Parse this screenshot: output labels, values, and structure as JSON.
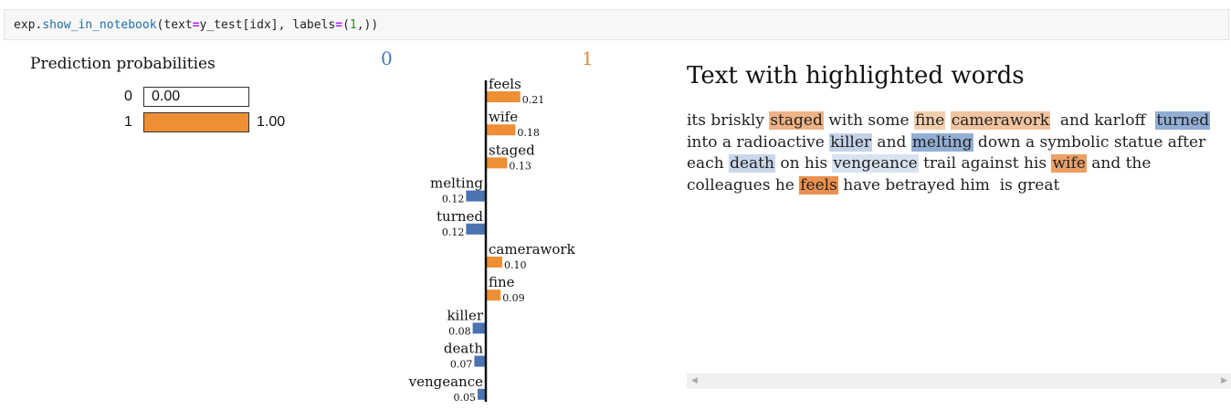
{
  "code_cell": {
    "object": "exp",
    "method": "show_in_notebook",
    "arg1_name": "text",
    "arg1_value": "y_test[idx]",
    "arg2_name": "labels",
    "arg2_value_open": "(",
    "arg2_value_num": "1",
    "arg2_value_close": ",)"
  },
  "prediction_probabilities": {
    "title": "Prediction probabilities",
    "rows": [
      {
        "label": "0",
        "value_text": "0.00",
        "fraction": 0.0
      },
      {
        "label": "1",
        "value_text": "1.00",
        "fraction": 1.0
      }
    ],
    "bar_color": "#ee8f35"
  },
  "class_headers": {
    "negative": "0",
    "positive": "1",
    "negative_color": "#4a7ab5",
    "positive_color": "#dd8a3c"
  },
  "chart_data": {
    "type": "bar",
    "orientation": "horizontal",
    "categories": [
      "feels",
      "wife",
      "staged",
      "melting",
      "turned",
      "camerawork",
      "fine",
      "killer",
      "death",
      "vengeance"
    ],
    "values": [
      0.21,
      0.18,
      0.13,
      -0.12,
      -0.12,
      0.1,
      0.09,
      -0.08,
      -0.07,
      -0.05
    ],
    "value_labels": [
      "0.21",
      "0.18",
      "0.13",
      "0.12",
      "0.12",
      "0.10",
      "0.09",
      "0.08",
      "0.07",
      "0.05"
    ],
    "positive_color": "#ee8f35",
    "negative_color": "#4b73b1"
  },
  "highlighted_text": {
    "title": "Text with highlighted words",
    "segments": [
      {
        "text": "its briskly "
      },
      {
        "text": "staged",
        "hl": "#eeb386"
      },
      {
        "text": " with some "
      },
      {
        "text": "fine",
        "hl": "#f3cfae"
      },
      {
        "text": " "
      },
      {
        "text": "camerawork",
        "hl": "#f0c49f"
      },
      {
        "text": "  and karloff  "
      },
      {
        "text": "turned",
        "hl": "#93aed5"
      },
      {
        "text": " into a radioactive "
      },
      {
        "text": "killer",
        "hl": "#c3d2e7"
      },
      {
        "text": " and "
      },
      {
        "text": "melting",
        "hl": "#93aed5"
      },
      {
        "text": " down a symbolic statue after each "
      },
      {
        "text": "death",
        "hl": "#c9d7ea"
      },
      {
        "text": " on his "
      },
      {
        "text": "vengeance",
        "hl": "#d8e2f0"
      },
      {
        "text": " trail against his "
      },
      {
        "text": "wife",
        "hl": "#ec9f66"
      },
      {
        "text": " and the colleagues he "
      },
      {
        "text": "feels",
        "hl": "#ea914f"
      },
      {
        "text": " have betrayed him  is great"
      }
    ]
  },
  "scrollbar": {
    "left_arrow": "◀",
    "right_arrow": "▶"
  }
}
